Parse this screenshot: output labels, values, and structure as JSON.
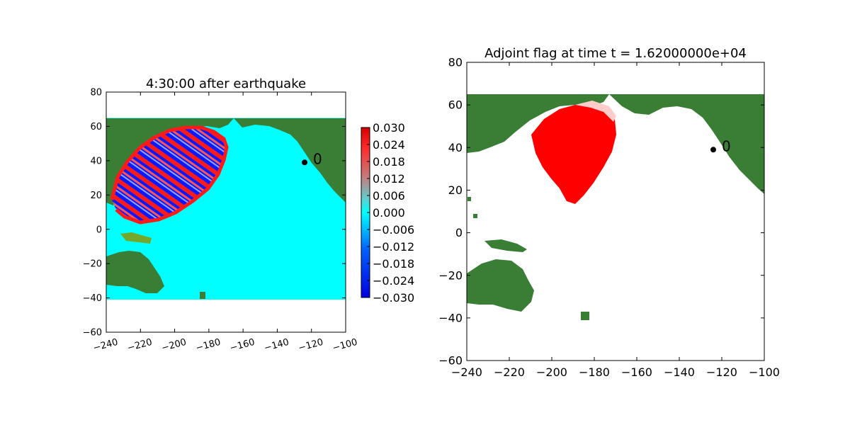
{
  "colors": {
    "land_dark": "#3a7d35",
    "land_light": "#74a82a",
    "ocean": "#00ffff",
    "wave_red": "#ff1a1a",
    "wave_blue": "#0a1aff",
    "flag_red": "#ff0000",
    "station": "#000000"
  },
  "chart_data": [
    {
      "type": "heatmap",
      "title": "4:30:00 after earthquake",
      "xlabel": "",
      "ylabel": "",
      "xlim": [
        -240,
        -100
      ],
      "ylim": [
        -60,
        80
      ],
      "xticks": [
        -240,
        -220,
        -200,
        -180,
        -160,
        -140,
        -120,
        -100
      ],
      "xtick_labels": [
        "−240",
        "−220",
        "−200",
        "−180",
        "−160",
        "−140",
        "−120",
        "−100"
      ],
      "yticks": [
        -60,
        -40,
        -20,
        0,
        20,
        40,
        60,
        80
      ],
      "ytick_labels": [
        "−60",
        "−40",
        "−20",
        "0",
        "20",
        "40",
        "60",
        "80"
      ],
      "grid": false,
      "domain_lon": [
        -240,
        -100
      ],
      "domain_lat": [
        -41,
        65
      ],
      "colorbar": {
        "range": [
          -0.03,
          0.03
        ],
        "ticks": [
          0.03,
          0.024,
          0.018,
          0.012,
          0.006,
          0.0,
          -0.006,
          -0.012,
          -0.018,
          -0.024,
          -0.03
        ],
        "tick_labels": [
          "0.030",
          "0.024",
          "0.018",
          "0.012",
          "0.006",
          "0.000",
          "−0.006",
          "−0.012",
          "−0.018",
          "−0.024",
          "−0.030"
        ]
      },
      "station": {
        "label": "0",
        "lon": -124,
        "lat": 39
      }
    },
    {
      "type": "heatmap",
      "title": "Adjoint flag at time t = 1.62000000e+04",
      "xlabel": "",
      "ylabel": "",
      "xlim": [
        -240,
        -100
      ],
      "ylim": [
        -60,
        80
      ],
      "xticks": [
        -240,
        -220,
        -200,
        -180,
        -160,
        -140,
        -120,
        -100
      ],
      "xtick_labels": [
        "−240",
        "−220",
        "−200",
        "−180",
        "−160",
        "−140",
        "−120",
        "−100"
      ],
      "yticks": [
        -60,
        -40,
        -20,
        0,
        20,
        40,
        60,
        80
      ],
      "ytick_labels": [
        "−60",
        "−40",
        "−20",
        "0",
        "20",
        "40",
        "60",
        "80"
      ],
      "grid": false,
      "domain_lon": [
        -240,
        -100
      ],
      "domain_lat": [
        -41,
        65
      ],
      "station": {
        "label": "0",
        "lon": -124,
        "lat": 39
      }
    }
  ]
}
